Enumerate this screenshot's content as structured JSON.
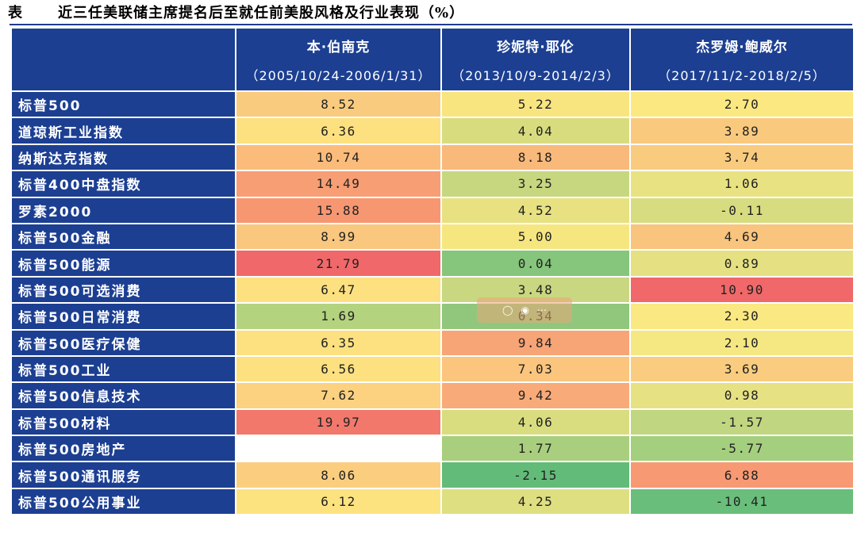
{
  "caption": {
    "label": "表",
    "title": "近三任美联储主席提名后至就任前美股风格及行业表现（%）"
  },
  "columns": [
    {
      "name": "本·伯南克",
      "period": "（2005/10/24-2006/1/31）"
    },
    {
      "name": "珍妮特·耶伦",
      "period": "（2013/10/9-2014/2/3）"
    },
    {
      "name": "杰罗姆·鲍威尔",
      "period": "（2017/11/2-2018/2/5）"
    }
  ],
  "rows": [
    {
      "label": "标普500",
      "values": [
        "8.52",
        "5.22",
        "2.70"
      ],
      "colors": [
        "#f9cb7f",
        "#f9e580",
        "#fbe881"
      ]
    },
    {
      "label": "道琼斯工业指数",
      "values": [
        "6.36",
        "4.04",
        "3.89"
      ],
      "colors": [
        "#fde180",
        "#d8dc7f",
        "#f9c97e"
      ]
    },
    {
      "label": "纳斯达克指数",
      "values": [
        "10.74",
        "8.18",
        "3.74"
      ],
      "colors": [
        "#fbbc7b",
        "#f8b97a",
        "#f9cb7f"
      ]
    },
    {
      "label": "标普400中盘指数",
      "values": [
        "14.49",
        "3.25",
        "1.06"
      ],
      "colors": [
        "#f79e74",
        "#c7d780",
        "#e8e283"
      ]
    },
    {
      "label": "罗素2000",
      "values": [
        "15.88",
        "4.52",
        "-0.11"
      ],
      "colors": [
        "#f79772",
        "#e7e182",
        "#d7dc80"
      ]
    },
    {
      "label": "标普500金融",
      "values": [
        "8.99",
        "5.00",
        "4.69"
      ],
      "colors": [
        "#f9c77e",
        "#f6e680",
        "#f9c47d"
      ]
    },
    {
      "label": "标普500能源",
      "values": [
        "21.79",
        "0.04",
        "0.89"
      ],
      "colors": [
        "#f06869",
        "#86c57c",
        "#e5e183"
      ]
    },
    {
      "label": "标普500可选消费",
      "values": [
        "6.47",
        "3.48",
        "10.90"
      ],
      "colors": [
        "#fde180",
        "#c9d780",
        "#f06869"
      ]
    },
    {
      "label": "标普500日常消费",
      "values": [
        "1.69",
        "0.34",
        "2.30"
      ],
      "colors": [
        "#b4d37f",
        "#91c77d",
        "#fae882"
      ]
    },
    {
      "label": "标普500医疗保健",
      "values": [
        "6.35",
        "9.84",
        "2.10"
      ],
      "colors": [
        "#fde180",
        "#f7a476",
        "#f5e782"
      ]
    },
    {
      "label": "标普500工业",
      "values": [
        "6.56",
        "7.03",
        "3.69"
      ],
      "colors": [
        "#fde080",
        "#fbc57e",
        "#f9cc7f"
      ]
    },
    {
      "label": "标普500信息技术",
      "values": [
        "7.62",
        "9.42",
        "0.98"
      ],
      "colors": [
        "#fcd17f",
        "#f8ab78",
        "#e6e183"
      ]
    },
    {
      "label": "标普500材料",
      "values": [
        "19.97",
        "4.06",
        "-1.57"
      ],
      "colors": [
        "#f2786c",
        "#d9dd80",
        "#c0d680"
      ]
    },
    {
      "label": "标普500房地产",
      "values": [
        "",
        "1.77",
        "-5.77"
      ],
      "colors": [
        "#ffffff",
        "#a9cf7e",
        "#a4cf7f"
      ]
    },
    {
      "label": "标普500通讯服务",
      "values": [
        "8.06",
        "-2.15",
        "6.88"
      ],
      "colors": [
        "#fbce7f",
        "#63bb79",
        "#f79a73"
      ]
    },
    {
      "label": "标普500公用事业",
      "values": [
        "6.12",
        "4.25",
        "-10.41"
      ],
      "colors": [
        "#fde380",
        "#dedf81",
        "#6abe7b"
      ]
    }
  ]
}
